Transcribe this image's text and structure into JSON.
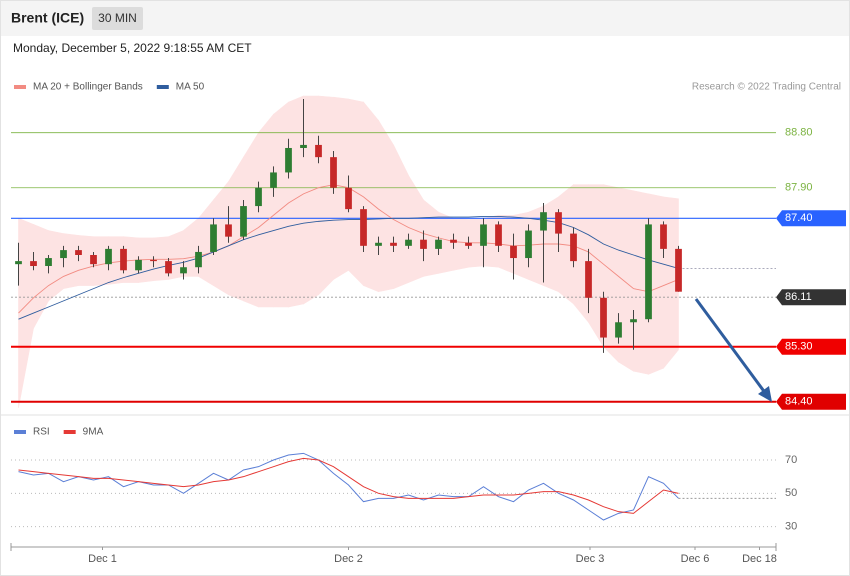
{
  "header": {
    "title": "Brent (ICE)",
    "timeframe": "30 MIN",
    "timestamp": "Monday, December 5, 2022 9:18:55 AM CET"
  },
  "credit": "Research © 2022 Trading Central",
  "chart_data": [
    {
      "type": "candlestick",
      "x": [
        0,
        1,
        2,
        3,
        4,
        5,
        6,
        7,
        8,
        9,
        10,
        11,
        12,
        13,
        14,
        15,
        16,
        17,
        18,
        19,
        20,
        21,
        22,
        23,
        24,
        25,
        26,
        27,
        28,
        29,
        30,
        31,
        32,
        33,
        34,
        35,
        36,
        37,
        38,
        39,
        40,
        41,
        42,
        43,
        44
      ],
      "open": [
        86.65,
        86.7,
        86.62,
        86.75,
        86.88,
        86.8,
        86.65,
        86.9,
        86.55,
        86.72,
        86.7,
        86.5,
        86.6,
        86.85,
        87.3,
        87.1,
        87.6,
        87.9,
        88.15,
        88.55,
        88.6,
        88.4,
        87.9,
        87.55,
        86.95,
        87.0,
        86.95,
        87.05,
        86.9,
        87.05,
        87.0,
        86.95,
        87.3,
        86.95,
        86.75,
        87.2,
        87.5,
        87.15,
        86.7,
        86.1,
        85.45,
        85.7,
        85.75,
        87.3,
        86.9
      ],
      "high": [
        87.0,
        86.85,
        86.8,
        86.95,
        86.95,
        86.85,
        86.95,
        86.95,
        86.78,
        86.78,
        86.75,
        86.7,
        86.95,
        87.4,
        87.6,
        87.7,
        88.0,
        88.25,
        88.7,
        89.35,
        88.75,
        88.5,
        88.1,
        87.6,
        87.1,
        87.1,
        87.15,
        87.2,
        87.1,
        87.15,
        87.1,
        87.4,
        87.35,
        87.15,
        87.3,
        87.65,
        87.55,
        87.25,
        86.9,
        86.2,
        85.85,
        85.9,
        87.4,
        87.35,
        86.95
      ],
      "low": [
        86.3,
        86.55,
        86.5,
        86.6,
        86.7,
        86.6,
        86.55,
        86.5,
        86.5,
        86.6,
        86.45,
        86.4,
        86.5,
        86.8,
        87.0,
        87.05,
        87.5,
        87.75,
        88.05,
        88.4,
        88.3,
        87.8,
        87.5,
        86.85,
        86.8,
        86.85,
        86.9,
        86.7,
        86.8,
        86.9,
        86.9,
        86.6,
        86.85,
        86.4,
        86.6,
        86.35,
        86.85,
        86.6,
        85.85,
        85.2,
        85.35,
        85.25,
        85.7,
        86.75,
        86.2
      ],
      "close": [
        86.7,
        86.62,
        86.75,
        86.88,
        86.8,
        86.65,
        86.9,
        86.55,
        86.72,
        86.7,
        86.5,
        86.6,
        86.85,
        87.3,
        87.1,
        87.6,
        87.9,
        88.15,
        88.55,
        88.6,
        88.4,
        87.9,
        87.55,
        86.95,
        87.0,
        86.95,
        87.05,
        86.9,
        87.05,
        87.0,
        86.95,
        87.3,
        86.95,
        86.75,
        87.2,
        87.5,
        87.15,
        86.7,
        86.1,
        85.45,
        85.7,
        85.75,
        87.3,
        86.9,
        86.2
      ],
      "up_color": "#2e7d32",
      "down_color": "#c62828",
      "series": [
        {
          "name": "MA 20 + Bollinger Bands",
          "color": "#f28b82",
          "band_color": "#fde3e3",
          "values": [
            85.85,
            86.1,
            86.3,
            86.45,
            86.55,
            86.62,
            86.67,
            86.7,
            86.72,
            86.73,
            86.73,
            86.74,
            86.78,
            86.85,
            86.95,
            87.1,
            87.25,
            87.45,
            87.65,
            87.8,
            87.9,
            87.95,
            87.9,
            87.75,
            87.55,
            87.38,
            87.25,
            87.15,
            87.08,
            87.02,
            87.0,
            87.0,
            86.98,
            86.95,
            86.96,
            86.98,
            86.98,
            86.95,
            86.85,
            86.65,
            86.45,
            86.25,
            86.2,
            86.3,
            86.4
          ],
          "upper": [
            87.4,
            87.3,
            87.2,
            87.15,
            87.12,
            87.1,
            87.1,
            87.1,
            87.08,
            87.08,
            87.1,
            87.2,
            87.4,
            87.7,
            88.0,
            88.4,
            88.8,
            89.1,
            89.3,
            89.4,
            89.4,
            89.38,
            89.35,
            89.3,
            89.0,
            88.6,
            88.1,
            87.7,
            87.5,
            87.4,
            87.38,
            87.4,
            87.45,
            87.45,
            87.5,
            87.6,
            87.75,
            87.95,
            87.95,
            87.95,
            87.9,
            87.85,
            87.8,
            87.75,
            87.72
          ],
          "lower": [
            84.3,
            85.6,
            86.05,
            86.25,
            86.3,
            86.3,
            86.32,
            86.35,
            86.35,
            86.38,
            86.4,
            86.45,
            86.45,
            86.3,
            86.15,
            86.05,
            85.95,
            85.95,
            85.95,
            86.0,
            86.15,
            86.4,
            86.55,
            86.3,
            86.2,
            86.25,
            86.35,
            86.45,
            86.5,
            86.55,
            86.6,
            86.62,
            86.6,
            86.5,
            86.4,
            86.3,
            86.2,
            86.0,
            85.7,
            85.3,
            85.05,
            84.9,
            84.85,
            84.95,
            85.25
          ]
        },
        {
          "name": "MA 50",
          "color": "#2f5d9e",
          "values": [
            85.75,
            85.85,
            85.95,
            86.05,
            86.15,
            86.25,
            86.35,
            86.43,
            86.5,
            86.57,
            86.63,
            86.68,
            86.75,
            86.85,
            86.95,
            87.05,
            87.13,
            87.2,
            87.27,
            87.32,
            87.35,
            87.37,
            87.38,
            87.38,
            87.39,
            87.4,
            87.4,
            87.41,
            87.42,
            87.42,
            87.42,
            87.43,
            87.43,
            87.42,
            87.4,
            87.37,
            87.33,
            87.25,
            87.13,
            86.98,
            86.88,
            86.8,
            86.72,
            86.65,
            86.58
          ]
        }
      ],
      "levels": [
        {
          "value": 88.8,
          "label": "88.80",
          "color": "#7cb342",
          "style": "text",
          "line": "solid",
          "width": 0.8
        },
        {
          "value": 87.9,
          "label": "87.90",
          "color": "#7cb342",
          "style": "text",
          "line": "solid",
          "width": 0.8
        },
        {
          "value": 87.4,
          "label": "87.40",
          "color": "#2962ff",
          "style": "box",
          "line": "solid",
          "width": 1.2
        },
        {
          "value": 86.11,
          "label": "86.11",
          "color": "#333333",
          "style": "box",
          "line": "dotted",
          "width": 0.8
        },
        {
          "value": 85.3,
          "label": "85.30",
          "color": "#f00000",
          "style": "box",
          "line": "solid",
          "width": 2
        },
        {
          "value": 84.4,
          "label": "84.40",
          "color": "#e00000",
          "style": "box",
          "line": "solid",
          "width": 2
        }
      ],
      "xlim": [
        -0.5,
        50.5
      ],
      "ylim": [
        84.2,
        89.4
      ]
    },
    {
      "type": "line",
      "x": [
        0,
        1,
        2,
        3,
        4,
        5,
        6,
        7,
        8,
        9,
        10,
        11,
        12,
        13,
        14,
        15,
        16,
        17,
        18,
        19,
        20,
        21,
        22,
        23,
        24,
        25,
        26,
        27,
        28,
        29,
        30,
        31,
        32,
        33,
        34,
        35,
        36,
        37,
        38,
        39,
        40,
        41,
        42,
        43,
        44
      ],
      "series": [
        {
          "name": "RSI",
          "color": "#5b7fd6",
          "values": [
            63,
            61,
            62,
            57,
            60,
            58,
            60,
            54,
            57,
            55,
            55,
            50,
            56,
            62,
            58,
            64,
            66,
            70,
            73,
            74,
            70,
            62,
            55,
            45,
            47,
            47,
            49,
            46,
            49,
            48,
            48,
            54,
            48,
            45,
            52,
            56,
            50,
            46,
            40,
            34,
            38,
            40,
            60,
            56,
            47
          ]
        },
        {
          "name": "9MA",
          "color": "#e53935",
          "values": [
            64,
            63,
            62,
            61,
            60,
            59,
            59,
            58,
            57,
            56,
            55,
            54,
            55,
            57,
            58,
            60,
            63,
            66,
            69,
            71,
            70,
            66,
            60,
            54,
            50,
            48,
            47,
            47,
            47,
            47,
            48,
            49,
            49,
            49,
            50,
            51,
            51,
            49,
            46,
            42,
            39,
            38,
            45,
            52,
            50
          ]
        }
      ],
      "xlim": [
        -0.5,
        50.5
      ],
      "ylim": [
        22,
        82
      ],
      "yticks": [
        70,
        50,
        30
      ],
      "grid": true,
      "xticks": [
        {
          "value": 5.6,
          "label": "Dec 1"
        },
        {
          "value": 22,
          "label": "Dec 2"
        },
        {
          "value": 38.1,
          "label": "Dec 3"
        },
        {
          "value": 45.1,
          "label": "Dec 6"
        },
        {
          "value": 49.4,
          "label": "Dec 18"
        }
      ]
    }
  ]
}
